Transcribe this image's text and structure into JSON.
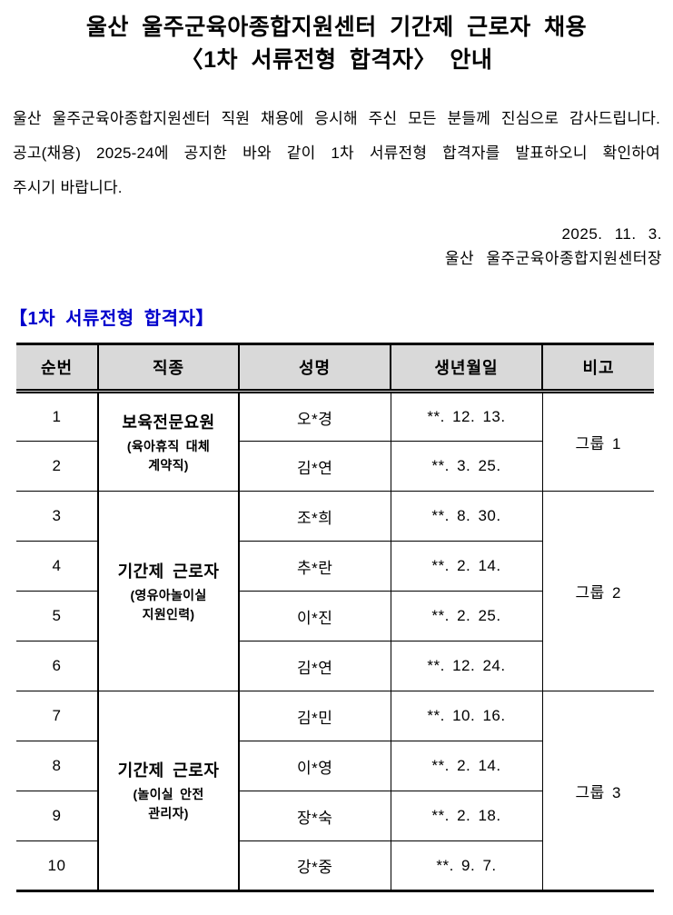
{
  "title": {
    "line1": "울산 울주군육아종합지원센터 기간제 근로자 채용",
    "line2": "〈1차 서류전형 합격자〉 안내"
  },
  "intro": {
    "lines": [
      "울산 울주군육아종합지원센터 직원 채용에 응시해 주신 모든 분들께 진심으로 감사드립니다.",
      "공고(채용) 2025-24에 공지한 바와 같이 1차 서류전형 합격자를 발표하오니 확인하여",
      "주시기 바랍니다."
    ]
  },
  "signoff": {
    "date": "2025. 11. 3.",
    "signer": "울산 울주군육아종합지원센터장"
  },
  "section": {
    "title": "【1차 서류전형 합격자】"
  },
  "colors": {
    "accent_blue": "#0000CC",
    "table_header_bg": "#D9D9D9"
  },
  "table": {
    "columns": [
      "순번",
      "직종",
      "성명",
      "생년월일",
      "비고"
    ],
    "groups": [
      {
        "job_title": "보육전문요원",
        "job_note": "(육아휴직 대체\n계약직)",
        "remark": "그룹 1",
        "rows": [
          {
            "no": "1",
            "name": "오*경",
            "birth": "**. 12. 13."
          },
          {
            "no": "2",
            "name": "김*연",
            "birth": "**. 3. 25."
          }
        ]
      },
      {
        "job_title": "기간제 근로자",
        "job_note": "(영유아놀이실\n지원인력)",
        "remark": "그룹 2",
        "rows": [
          {
            "no": "3",
            "name": "조*희",
            "birth": "**. 8. 30."
          },
          {
            "no": "4",
            "name": "추*란",
            "birth": "**. 2. 14."
          },
          {
            "no": "5",
            "name": "이*진",
            "birth": "**. 2. 25."
          },
          {
            "no": "6",
            "name": "김*연",
            "birth": "**. 12. 24."
          }
        ]
      },
      {
        "job_title": "기간제 근로자",
        "job_note": "(놀이실 안전\n관리자)",
        "remark": "그룹 3",
        "rows": [
          {
            "no": "7",
            "name": "김*민",
            "birth": "**. 10. 16."
          },
          {
            "no": "8",
            "name": "이*영",
            "birth": "**. 2. 14."
          },
          {
            "no": "9",
            "name": "장*숙",
            "birth": "**. 2. 18."
          },
          {
            "no": "10",
            "name": "강*중",
            "birth": "**. 9. 7."
          }
        ]
      }
    ]
  }
}
